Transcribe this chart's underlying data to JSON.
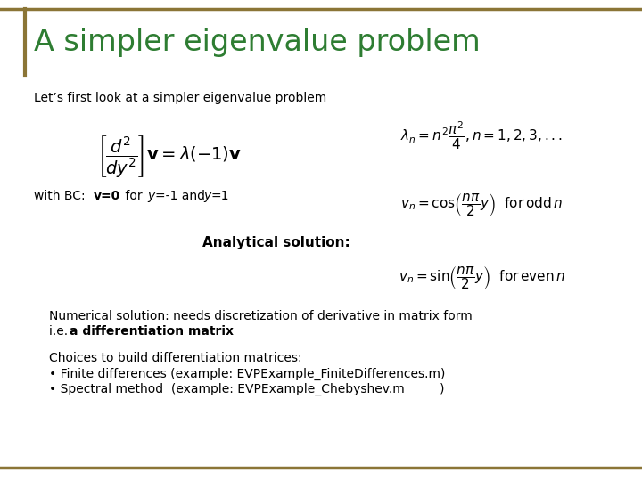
{
  "title": "A simpler eigenvalue problem",
  "title_color": "#2E7D32",
  "bg_color": "#ffffff",
  "border_color": "#8B7536",
  "intro_text": "Let’s first look at a simpler eigenvalue problem",
  "numerical_line1": "Numerical solution: needs discretization of derivative in matrix form",
  "numerical_line2_prefix": "i.e. ",
  "numerical_line2_bold": "a differentiation matrix",
  "choices_line": "Choices to build differentiation matrices:",
  "bullet1": "• Finite differences (example: EVPExample_FiniteDifferences.m)",
  "bullet2": "• Spectral method  (example: EVPExample_Chebyshev.m         )"
}
